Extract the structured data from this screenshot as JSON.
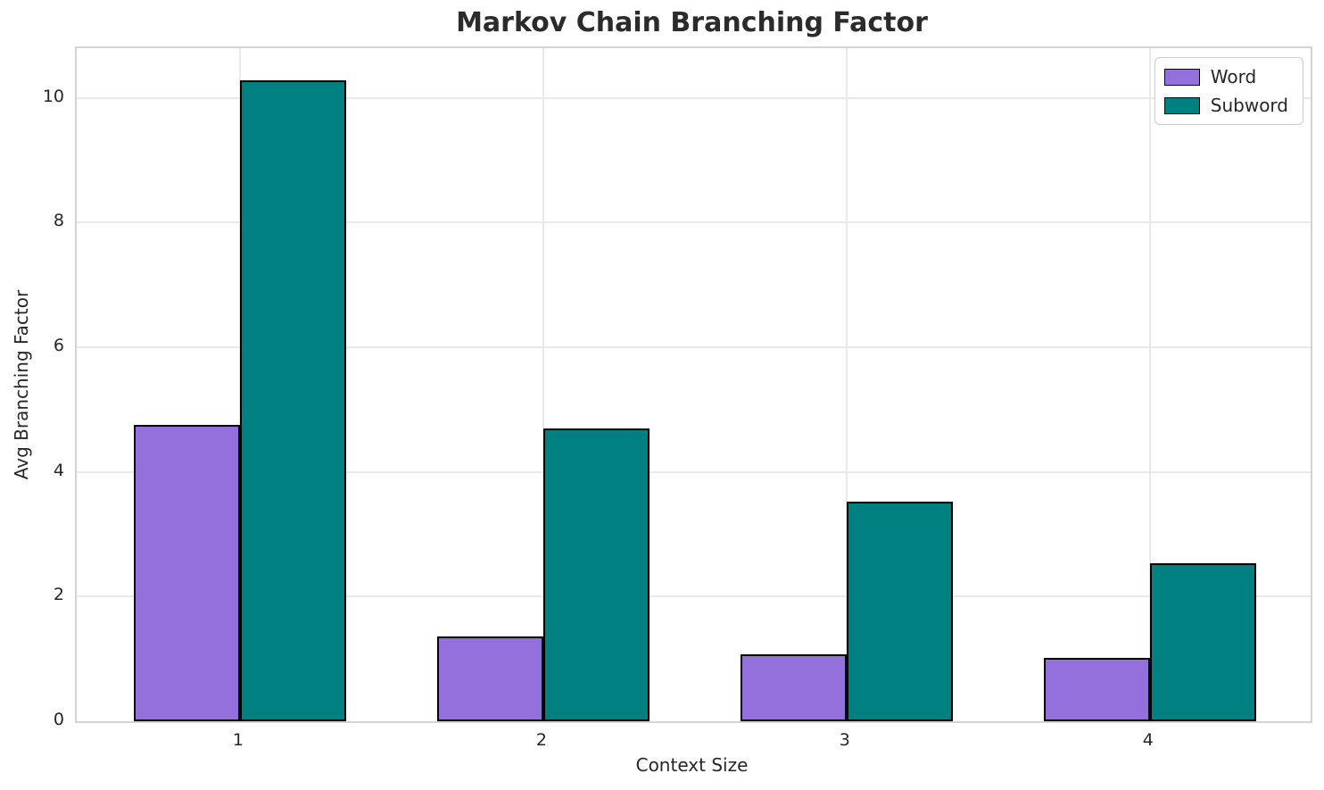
{
  "chart_data": {
    "type": "bar",
    "title": "Markov Chain Branching Factor",
    "xlabel": "Context Size",
    "ylabel": "Avg Branching Factor",
    "categories": [
      "1",
      "2",
      "3",
      "4"
    ],
    "series": [
      {
        "name": "Word",
        "color": "#9370DB",
        "offset": -0.175,
        "values": [
          4.76,
          1.36,
          1.07,
          1.01
        ]
      },
      {
        "name": "Subword",
        "color": "#008080",
        "offset": 0.175,
        "values": [
          10.28,
          4.7,
          3.52,
          2.53
        ]
      }
    ],
    "bar_width": 0.35,
    "bar_edge_color": "#000000",
    "yticks": [
      0,
      2,
      4,
      6,
      8,
      10
    ],
    "ylim": [
      0,
      10.8
    ],
    "xlim": [
      0.462,
      4.53
    ],
    "grid": true,
    "grid_color": "#e9e9e9",
    "legend_position": "upper right"
  }
}
